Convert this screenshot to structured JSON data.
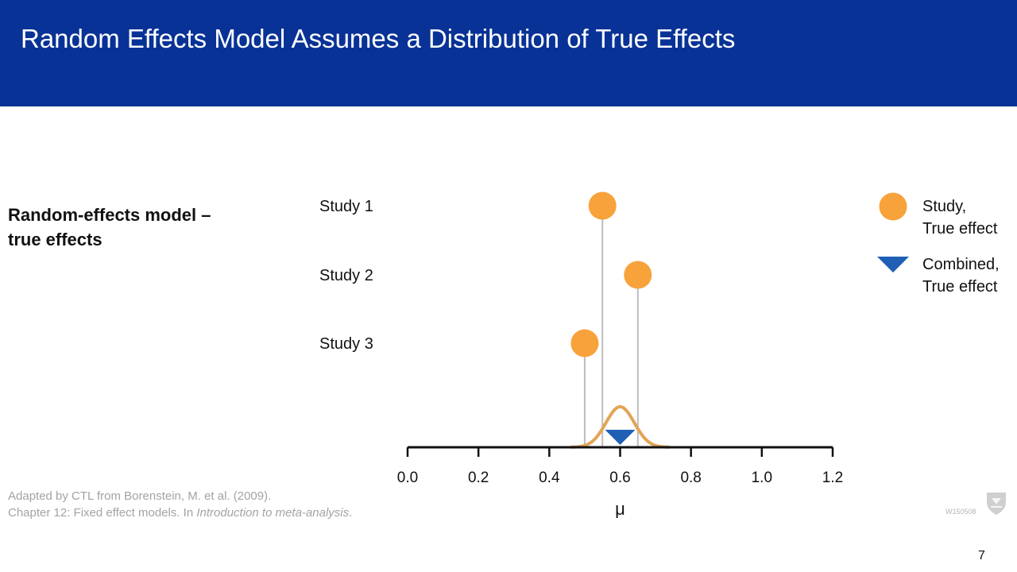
{
  "slide": {
    "title": "Random Effects Model Assumes a Distribution of True Effects",
    "subtitle_line1": "Random-effects model –",
    "subtitle_line2": "true effects",
    "citation_line1": "Adapted by CTL from Borenstein, M. et al. (2009).",
    "citation_line2_prefix": "Chapter 12: Fixed effect models. In ",
    "citation_line2_italic": "Introduction to meta-analysis",
    "citation_line2_suffix": ".",
    "slide_id": "W150508",
    "page_number": "7",
    "logo_icon": "university-shield-icon"
  },
  "colors": {
    "banner": "#083296",
    "study_marker": "#F7A23B",
    "combined_marker": "#1F5FB5",
    "distribution_curve": "#E2A456",
    "stem": "#BDBDBD"
  },
  "chart_data": {
    "type": "scatter",
    "xlabel": "μ",
    "xlim": [
      0.0,
      1.2
    ],
    "xticks": [
      0.0,
      0.2,
      0.4,
      0.6,
      0.8,
      1.0,
      1.2
    ],
    "xtick_labels": [
      "0.0",
      "0.2",
      "0.4",
      "0.6",
      "0.8",
      "1.0",
      "1.2"
    ],
    "studies": [
      {
        "name": "Study 1",
        "true_effect": 0.55
      },
      {
        "name": "Study 2",
        "true_effect": 0.65
      },
      {
        "name": "Study 3",
        "true_effect": 0.5
      }
    ],
    "combined_true_effect": 0.6,
    "distribution": {
      "type": "normal",
      "mean": 0.6,
      "sd": 0.04,
      "range": [
        0.46,
        0.74
      ]
    },
    "legend": [
      {
        "marker": "circle",
        "line1": "Study,",
        "line2": "True effect"
      },
      {
        "marker": "triangle-down",
        "line1": "Combined,",
        "line2": "True effect"
      }
    ]
  }
}
